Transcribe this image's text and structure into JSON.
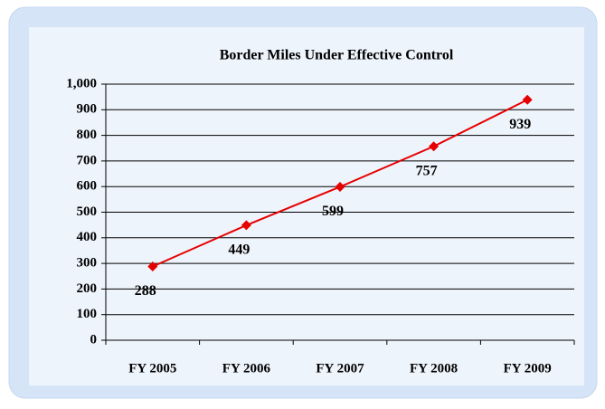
{
  "chart_data": {
    "type": "line",
    "title": "Border Miles Under Effective Control",
    "categories": [
      "FY 2005",
      "FY 2006",
      "FY 2007",
      "FY 2008",
      "FY 2009"
    ],
    "values": [
      288,
      449,
      599,
      757,
      939
    ],
    "color": "#e60000",
    "ylim": [
      0,
      1000
    ],
    "yticks": [
      0,
      100,
      200,
      300,
      400,
      500,
      600,
      700,
      800,
      900,
      {
        "value": 1000,
        "label": "1,000"
      }
    ],
    "grid": true
  }
}
